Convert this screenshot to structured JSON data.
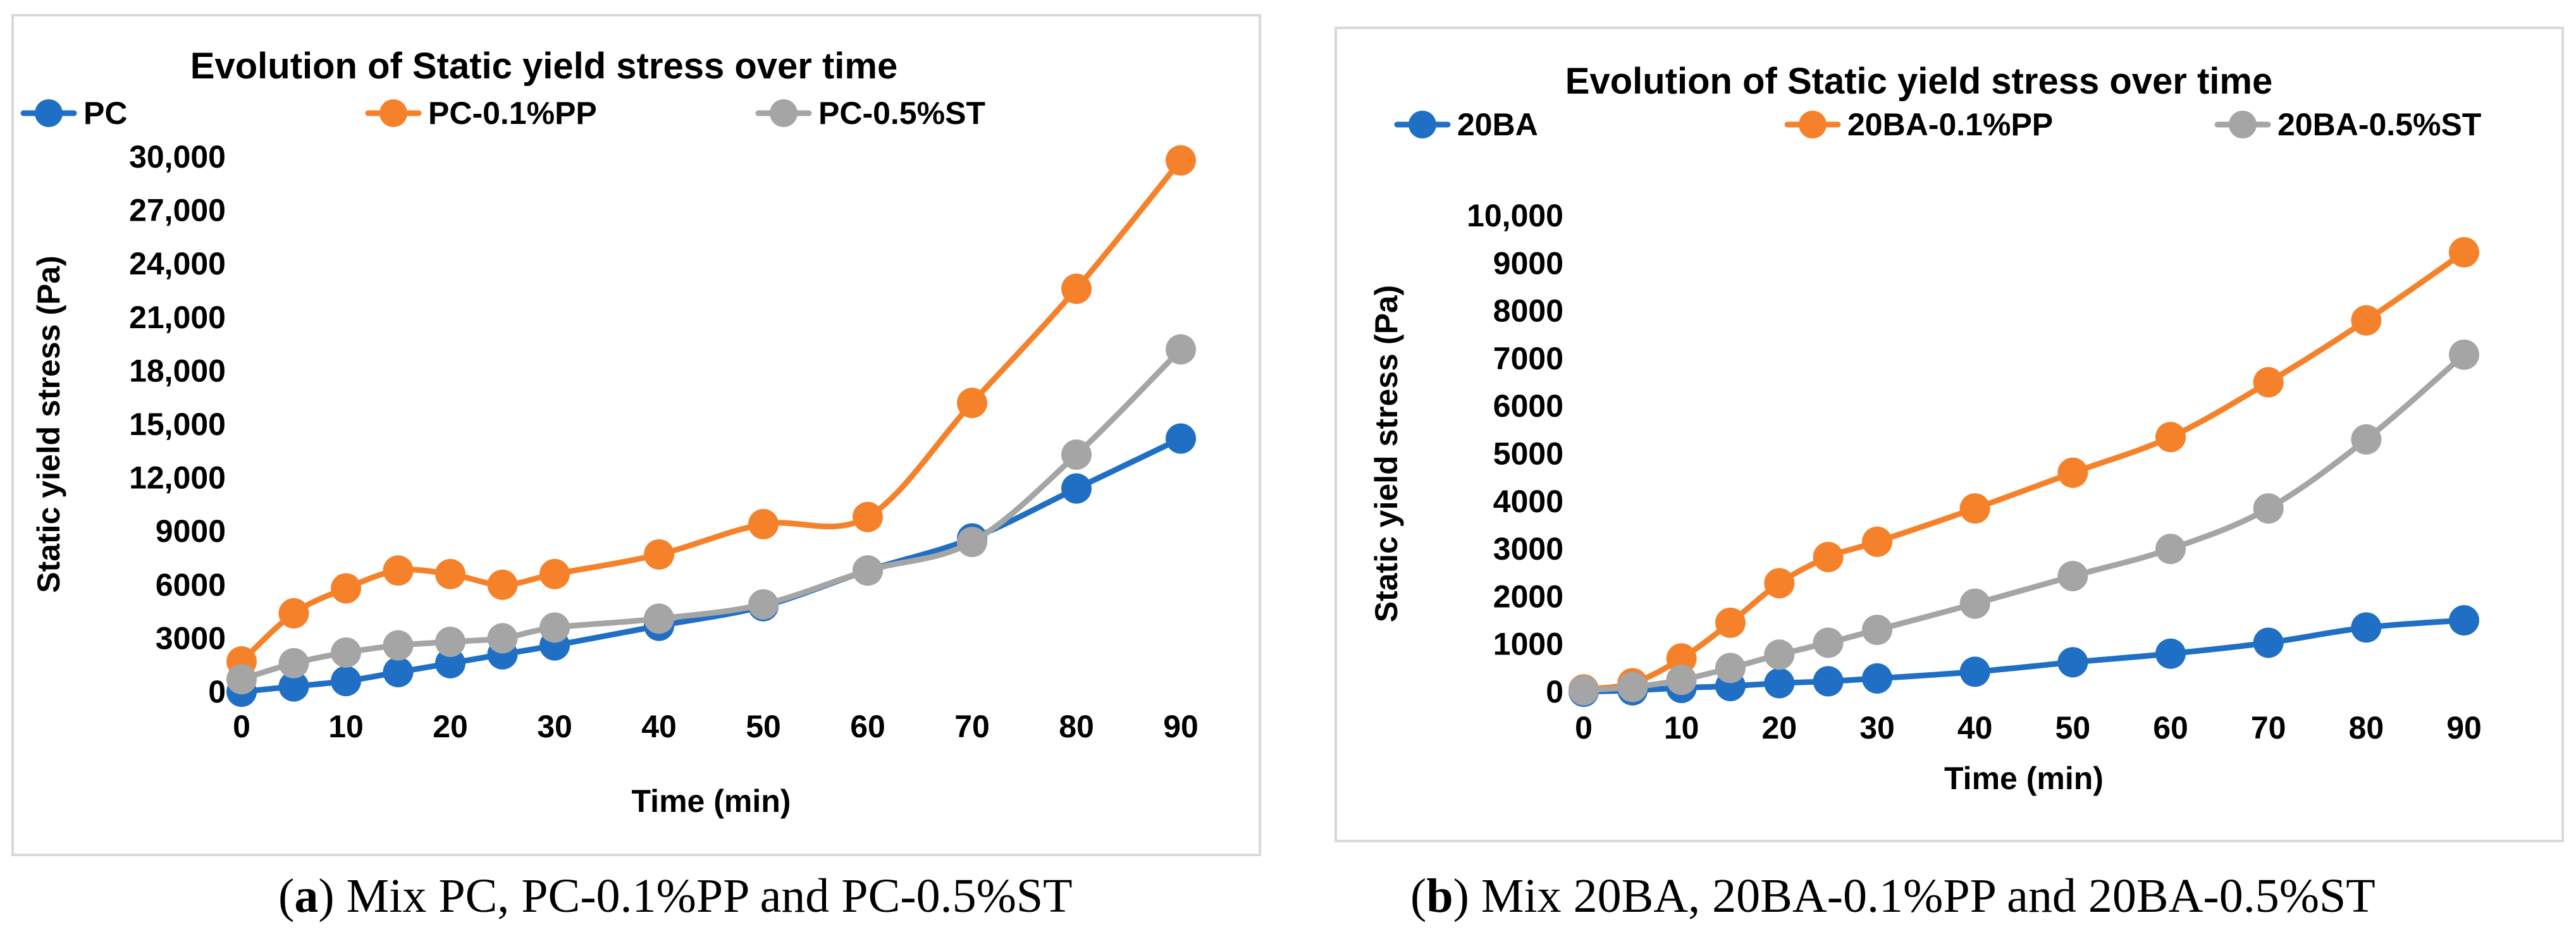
{
  "captions": {
    "a": {
      "letter": "a",
      "text": "Mix PC, PC-0.1%PP and PC-0.5%ST"
    },
    "b": {
      "letter": "b",
      "text": "Mix 20BA, 20BA-0.1%PP and 20BA-0.5%ST"
    }
  },
  "chart_data": [
    {
      "type": "line",
      "title": "Evolution of Static yield stress over time",
      "xlabel": "Time (min)",
      "ylabel": "Static yield stress (Pa)",
      "x": [
        0,
        5,
        10,
        15,
        20,
        25,
        30,
        40,
        50,
        60,
        70,
        80,
        90
      ],
      "xticks": [
        0,
        10,
        20,
        30,
        40,
        50,
        60,
        70,
        80,
        90
      ],
      "xlim": [
        0,
        90
      ],
      "ylim": [
        0,
        30000
      ],
      "yticks": [
        0,
        3000,
        6000,
        9000,
        12000,
        15000,
        18000,
        21000,
        24000,
        27000,
        30000
      ],
      "ytick_labels": [
        "0",
        "3000",
        "6000",
        "9000",
        "12,000",
        "15,000",
        "18,000",
        "21,000",
        "24,000",
        "27,000",
        "30,000"
      ],
      "grid": false,
      "legend": "top",
      "series": [
        {
          "name": "PC",
          "color": "#1f6fc5",
          "values": [
            0,
            300,
            600,
            1100,
            1600,
            2100,
            2600,
            3700,
            4800,
            6800,
            8600,
            11400,
            14200
          ]
        },
        {
          "name": "PC-0.1%PP",
          "color": "#f5822a",
          "values": [
            1700,
            4400,
            5800,
            6800,
            6600,
            6000,
            6600,
            7700,
            9400,
            9800,
            16200,
            22600,
            29800
          ]
        },
        {
          "name": "PC-0.5%ST",
          "color": "#a5a5a5",
          "values": [
            700,
            1600,
            2200,
            2600,
            2800,
            3000,
            3600,
            4100,
            4900,
            6800,
            8400,
            13300,
            19200
          ]
        }
      ]
    },
    {
      "type": "line",
      "title": "Evolution of Static yield stress over time",
      "xlabel": "Time (min)",
      "ylabel": "Static yield stress (Pa)",
      "x": [
        0,
        5,
        10,
        15,
        20,
        25,
        30,
        40,
        50,
        60,
        70,
        80,
        90
      ],
      "xticks": [
        0,
        10,
        20,
        30,
        40,
        50,
        60,
        70,
        80,
        90
      ],
      "xlim": [
        0,
        90
      ],
      "ylim": [
        0,
        10000
      ],
      "yticks": [
        0,
        1000,
        2000,
        3000,
        4000,
        5000,
        6000,
        7000,
        8000,
        9000,
        10000
      ],
      "ytick_labels": [
        "0",
        "1000",
        "2000",
        "3000",
        "4000",
        "5000",
        "6000",
        "7000",
        "8000",
        "9000",
        "10,000"
      ],
      "grid": false,
      "legend": "top",
      "series": [
        {
          "name": "20BA",
          "color": "#1f6fc5",
          "values": [
            0,
            30,
            80,
            120,
            180,
            220,
            280,
            420,
            620,
            800,
            1030,
            1350,
            1500
          ]
        },
        {
          "name": "20BA-0.1%PP",
          "color": "#f5822a",
          "values": [
            50,
            180,
            700,
            1450,
            2280,
            2830,
            3150,
            3850,
            4600,
            5350,
            6500,
            7800,
            9230
          ]
        },
        {
          "name": "20BA-0.5%ST",
          "color": "#a5a5a5",
          "values": [
            30,
            100,
            250,
            500,
            780,
            1030,
            1300,
            1850,
            2430,
            3000,
            3850,
            5300,
            7080
          ]
        }
      ]
    }
  ]
}
